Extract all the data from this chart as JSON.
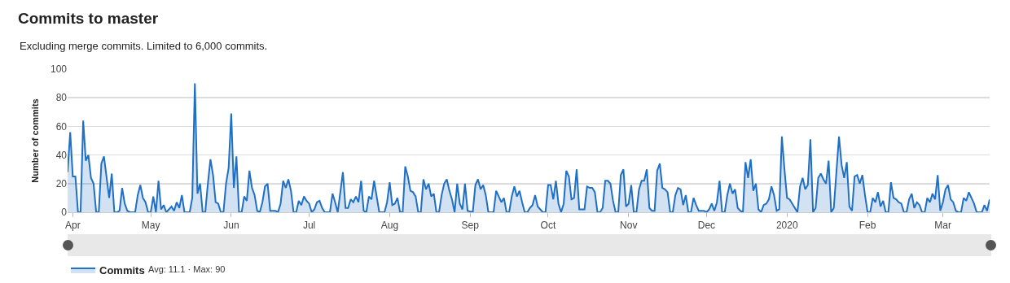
{
  "chart_data": {
    "type": "area",
    "title": "Commits to master",
    "subtitle": "Excluding merge commits. Limited to 6,000 commits.",
    "ylabel": "Number of commits",
    "x": [
      "2019-03-30",
      "2019-03-31",
      "2019-04-01",
      "2019-04-02",
      "2019-04-03",
      "2019-04-04",
      "2019-04-05",
      "2019-04-06",
      "2019-04-07",
      "2019-04-08",
      "2019-04-09",
      "2019-04-10",
      "2019-04-11",
      "2019-04-12",
      "2019-04-13",
      "2019-04-15",
      "2019-04-16",
      "2019-04-17",
      "2019-04-18",
      "2019-04-19",
      "2019-04-20",
      "2019-04-21",
      "2019-04-22",
      "2019-04-23",
      "2019-04-25",
      "2019-04-26",
      "2019-04-27",
      "2019-04-28",
      "2019-04-29",
      "2019-04-30",
      "2019-05-01",
      "2019-05-02",
      "2019-05-03",
      "2019-05-04",
      "2019-05-05",
      "2019-05-06",
      "2019-05-07",
      "2019-05-09",
      "2019-05-10",
      "2019-05-11",
      "2019-05-12",
      "2019-05-13",
      "2019-05-14",
      "2019-05-16",
      "2019-05-17",
      "2019-05-18",
      "2019-05-19",
      "2019-05-20",
      "2019-05-21",
      "2019-05-22",
      "2019-05-23",
      "2019-05-24",
      "2019-05-25",
      "2019-05-26",
      "2019-05-27",
      "2019-05-28",
      "2019-05-29",
      "2019-05-30",
      "2019-05-31",
      "2019-06-01",
      "2019-06-02",
      "2019-06-03",
      "2019-06-04",
      "2019-06-05",
      "2019-06-06",
      "2019-06-07",
      "2019-06-08",
      "2019-06-09",
      "2019-06-10",
      "2019-06-11",
      "2019-06-12",
      "2019-06-13",
      "2019-06-14",
      "2019-06-15",
      "2019-06-16",
      "2019-06-18",
      "2019-06-19",
      "2019-06-20",
      "2019-06-21",
      "2019-06-22",
      "2019-06-23",
      "2019-06-24",
      "2019-06-25",
      "2019-06-26",
      "2019-06-27",
      "2019-06-28",
      "2019-06-29",
      "2019-06-30",
      "2019-07-01",
      "2019-07-02",
      "2019-07-03",
      "2019-07-04",
      "2019-07-05",
      "2019-07-06",
      "2019-07-07",
      "2019-07-09",
      "2019-07-10",
      "2019-07-11",
      "2019-07-12",
      "2019-07-14",
      "2019-07-15",
      "2019-07-16",
      "2019-07-17",
      "2019-07-18",
      "2019-07-19",
      "2019-07-20",
      "2019-07-21",
      "2019-07-22",
      "2019-07-23",
      "2019-07-24",
      "2019-07-25",
      "2019-07-26",
      "2019-07-27",
      "2019-07-28",
      "2019-07-30",
      "2019-07-31",
      "2019-08-01",
      "2019-08-02",
      "2019-08-03",
      "2019-08-04",
      "2019-08-05",
      "2019-08-06",
      "2019-08-07",
      "2019-08-08",
      "2019-08-09",
      "2019-08-10",
      "2019-08-11",
      "2019-08-12",
      "2019-08-13",
      "2019-08-14",
      "2019-08-15",
      "2019-08-16",
      "2019-08-17",
      "2019-08-18",
      "2019-08-19",
      "2019-08-20",
      "2019-08-21",
      "2019-08-22",
      "2019-08-23",
      "2019-08-24",
      "2019-08-25",
      "2019-08-26",
      "2019-08-27",
      "2019-08-28",
      "2019-08-29",
      "2019-08-30",
      "2019-08-31",
      "2019-09-02",
      "2019-09-03",
      "2019-09-04",
      "2019-09-05",
      "2019-09-06",
      "2019-09-07",
      "2019-09-08",
      "2019-09-10",
      "2019-09-11",
      "2019-09-12",
      "2019-09-13",
      "2019-09-14",
      "2019-09-15",
      "2019-09-16",
      "2019-09-17",
      "2019-09-18",
      "2019-09-19",
      "2019-09-20",
      "2019-09-21",
      "2019-09-22",
      "2019-09-23",
      "2019-09-24",
      "2019-09-25",
      "2019-09-26",
      "2019-09-27",
      "2019-09-28",
      "2019-09-29",
      "2019-09-30",
      "2019-10-01",
      "2019-10-02",
      "2019-10-03",
      "2019-10-04",
      "2019-10-05",
      "2019-10-06",
      "2019-10-07",
      "2019-10-08",
      "2019-10-09",
      "2019-10-10",
      "2019-10-11",
      "2019-10-12",
      "2019-10-13",
      "2019-10-14",
      "2019-10-15",
      "2019-10-16",
      "2019-10-17",
      "2019-10-18",
      "2019-10-19",
      "2019-10-20",
      "2019-10-21",
      "2019-10-22",
      "2019-10-23",
      "2019-10-24",
      "2019-10-25",
      "2019-10-26",
      "2019-10-27",
      "2019-10-28",
      "2019-10-29",
      "2019-10-30",
      "2019-10-31",
      "2019-11-01",
      "2019-11-02",
      "2019-11-03",
      "2019-11-04",
      "2019-11-05",
      "2019-11-06",
      "2019-11-07",
      "2019-11-08",
      "2019-11-09",
      "2019-11-10",
      "2019-11-11",
      "2019-11-12",
      "2019-11-13",
      "2019-11-14",
      "2019-11-15",
      "2019-11-16",
      "2019-11-17",
      "2019-11-18",
      "2019-11-19",
      "2019-11-20",
      "2019-11-21",
      "2019-11-22",
      "2019-11-23",
      "2019-11-24",
      "2019-11-25",
      "2019-11-26",
      "2019-11-27",
      "2019-11-28",
      "2019-11-29",
      "2019-11-30",
      "2019-12-01",
      "2019-12-02",
      "2019-12-03",
      "2019-12-04",
      "2019-12-05",
      "2019-12-06",
      "2019-12-07",
      "2019-12-08",
      "2019-12-09",
      "2019-12-10",
      "2019-12-11",
      "2019-12-12",
      "2019-12-13",
      "2019-12-14",
      "2019-12-15",
      "2019-12-16",
      "2019-12-17",
      "2019-12-18",
      "2019-12-19",
      "2019-12-20",
      "2019-12-21",
      "2019-12-22",
      "2019-12-23",
      "2019-12-24",
      "2019-12-25",
      "2019-12-26",
      "2019-12-27",
      "2019-12-28",
      "2019-12-29",
      "2019-12-30",
      "2019-12-31",
      "2020-01-01",
      "2020-01-02",
      "2020-01-03",
      "2020-01-04",
      "2020-01-05",
      "2020-01-06",
      "2020-01-07",
      "2020-01-08",
      "2020-01-09",
      "2020-01-10",
      "2020-01-11",
      "2020-01-12",
      "2020-01-13",
      "2020-01-14",
      "2020-01-15",
      "2020-01-16",
      "2020-01-17",
      "2020-01-18",
      "2020-01-19",
      "2020-01-21",
      "2020-01-22",
      "2020-01-23",
      "2020-01-24",
      "2020-01-25",
      "2020-01-26",
      "2020-01-27",
      "2020-01-28",
      "2020-01-29",
      "2020-01-30",
      "2020-01-31",
      "2020-02-01",
      "2020-02-02",
      "2020-02-03",
      "2020-02-04",
      "2020-02-05",
      "2020-02-06",
      "2020-02-07",
      "2020-02-08",
      "2020-02-09",
      "2020-02-10",
      "2020-02-11",
      "2020-02-12",
      "2020-02-13",
      "2020-02-14",
      "2020-02-15",
      "2020-02-16",
      "2020-02-17",
      "2020-02-18",
      "2020-02-19",
      "2020-02-20",
      "2020-02-21",
      "2020-02-22",
      "2020-02-23",
      "2020-02-24",
      "2020-02-25",
      "2020-02-26",
      "2020-02-27",
      "2020-02-28",
      "2020-02-29",
      "2020-03-01",
      "2020-03-02",
      "2020-03-03",
      "2020-03-04",
      "2020-03-05",
      "2020-03-06",
      "2020-03-07",
      "2020-03-08",
      "2020-03-09",
      "2020-03-10",
      "2020-03-11",
      "2020-03-12",
      "2020-03-13",
      "2020-03-14",
      "2020-03-16",
      "2020-03-17",
      "2020-03-18",
      "2020-03-19"
    ],
    "series": [
      {
        "name": "Commits",
        "color": "#1f6fc5",
        "values": [
          28,
          56,
          25,
          25,
          0,
          0,
          64,
          36,
          40,
          24,
          20,
          0,
          0,
          34,
          39,
          10,
          27,
          0,
          0,
          1,
          17,
          6,
          1,
          0,
          0,
          12,
          19,
          10,
          7,
          0,
          0,
          11,
          0,
          22,
          2,
          5,
          0,
          4,
          1,
          7,
          3,
          12,
          0,
          0,
          10,
          90,
          13,
          20,
          0,
          0,
          20,
          37,
          26,
          7,
          6,
          0,
          0,
          20,
          31,
          69,
          17,
          39,
          0,
          0,
          11,
          8,
          29,
          17,
          12,
          1,
          0,
          7,
          18,
          20,
          1,
          1,
          0,
          6,
          22,
          17,
          23,
          15,
          0,
          0,
          8,
          5,
          11,
          8,
          6,
          0,
          2,
          7,
          8,
          3,
          0,
          0,
          13,
          7,
          0,
          28,
          3,
          3,
          9,
          7,
          11,
          7,
          22,
          1,
          0,
          11,
          9,
          22,
          11,
          0,
          0,
          7,
          21,
          5,
          6,
          10,
          0,
          0,
          32,
          25,
          15,
          14,
          11,
          0,
          0,
          23,
          16,
          20,
          11,
          13,
          0,
          0,
          12,
          20,
          23,
          15,
          9,
          0,
          20,
          6,
          2,
          20,
          1,
          0,
          19,
          23,
          16,
          19,
          12,
          0,
          0,
          15,
          11,
          7,
          10,
          0,
          0,
          11,
          18,
          11,
          15,
          7,
          0,
          0,
          3,
          5,
          12,
          4,
          2,
          0,
          0,
          19,
          19,
          9,
          22,
          6,
          0,
          6,
          29,
          25,
          9,
          10,
          30,
          2,
          2,
          2,
          18,
          17,
          17,
          14,
          0,
          0,
          3,
          22,
          22,
          20,
          8,
          0,
          0,
          26,
          30,
          4,
          6,
          19,
          0,
          0,
          16,
          22,
          22,
          30,
          3,
          1,
          1,
          29,
          34,
          17,
          16,
          14,
          0,
          0,
          12,
          17,
          16,
          5,
          12,
          0,
          0,
          10,
          5,
          1,
          1,
          1,
          0,
          2,
          6,
          1,
          7,
          22,
          0,
          0,
          12,
          20,
          13,
          16,
          3,
          1,
          0,
          35,
          24,
          37,
          15,
          20,
          2,
          0,
          5,
          6,
          9,
          18,
          12,
          1,
          2,
          53,
          30,
          10,
          9,
          6,
          3,
          0,
          18,
          24,
          16,
          19,
          51,
          0,
          3,
          24,
          27,
          23,
          20,
          36,
          0,
          3,
          53,
          33,
          24,
          35,
          4,
          1,
          25,
          26,
          20,
          26,
          12,
          0,
          0,
          10,
          7,
          14,
          4,
          8,
          0,
          0,
          21,
          10,
          9,
          7,
          6,
          0,
          0,
          9,
          13,
          3,
          7,
          5,
          0,
          0,
          10,
          7,
          13,
          9,
          26,
          1,
          7,
          16,
          19,
          9,
          7,
          1,
          0,
          0,
          10,
          8,
          14,
          10,
          6,
          0,
          0,
          5,
          1,
          9
        ]
      }
    ],
    "xlim": [
      "2019-03-30",
      "2020-03-19"
    ],
    "xticks": [
      {
        "value": "2019-04-01",
        "label": "Apr"
      },
      {
        "value": "2019-05-01",
        "label": "May"
      },
      {
        "value": "2019-06-01",
        "label": "Jun"
      },
      {
        "value": "2019-07-01",
        "label": "Jul"
      },
      {
        "value": "2019-08-01",
        "label": "Aug"
      },
      {
        "value": "2019-09-01",
        "label": "Sep"
      },
      {
        "value": "2019-10-01",
        "label": "Oct"
      },
      {
        "value": "2019-11-01",
        "label": "Nov"
      },
      {
        "value": "2019-12-01",
        "label": "Dec"
      },
      {
        "value": "2020-01-01",
        "label": "2020"
      },
      {
        "value": "2020-02-01",
        "label": "Feb"
      },
      {
        "value": "2020-03-01",
        "label": "Mar"
      }
    ],
    "ylim": [
      0,
      100
    ],
    "yticks": [
      0,
      20,
      40,
      60,
      80,
      100
    ],
    "grid": "y",
    "legend": "bottom left",
    "marker": "none",
    "line_style": "solid",
    "annotations": [
      "Avg: 11.1 · Max: 90"
    ]
  }
}
